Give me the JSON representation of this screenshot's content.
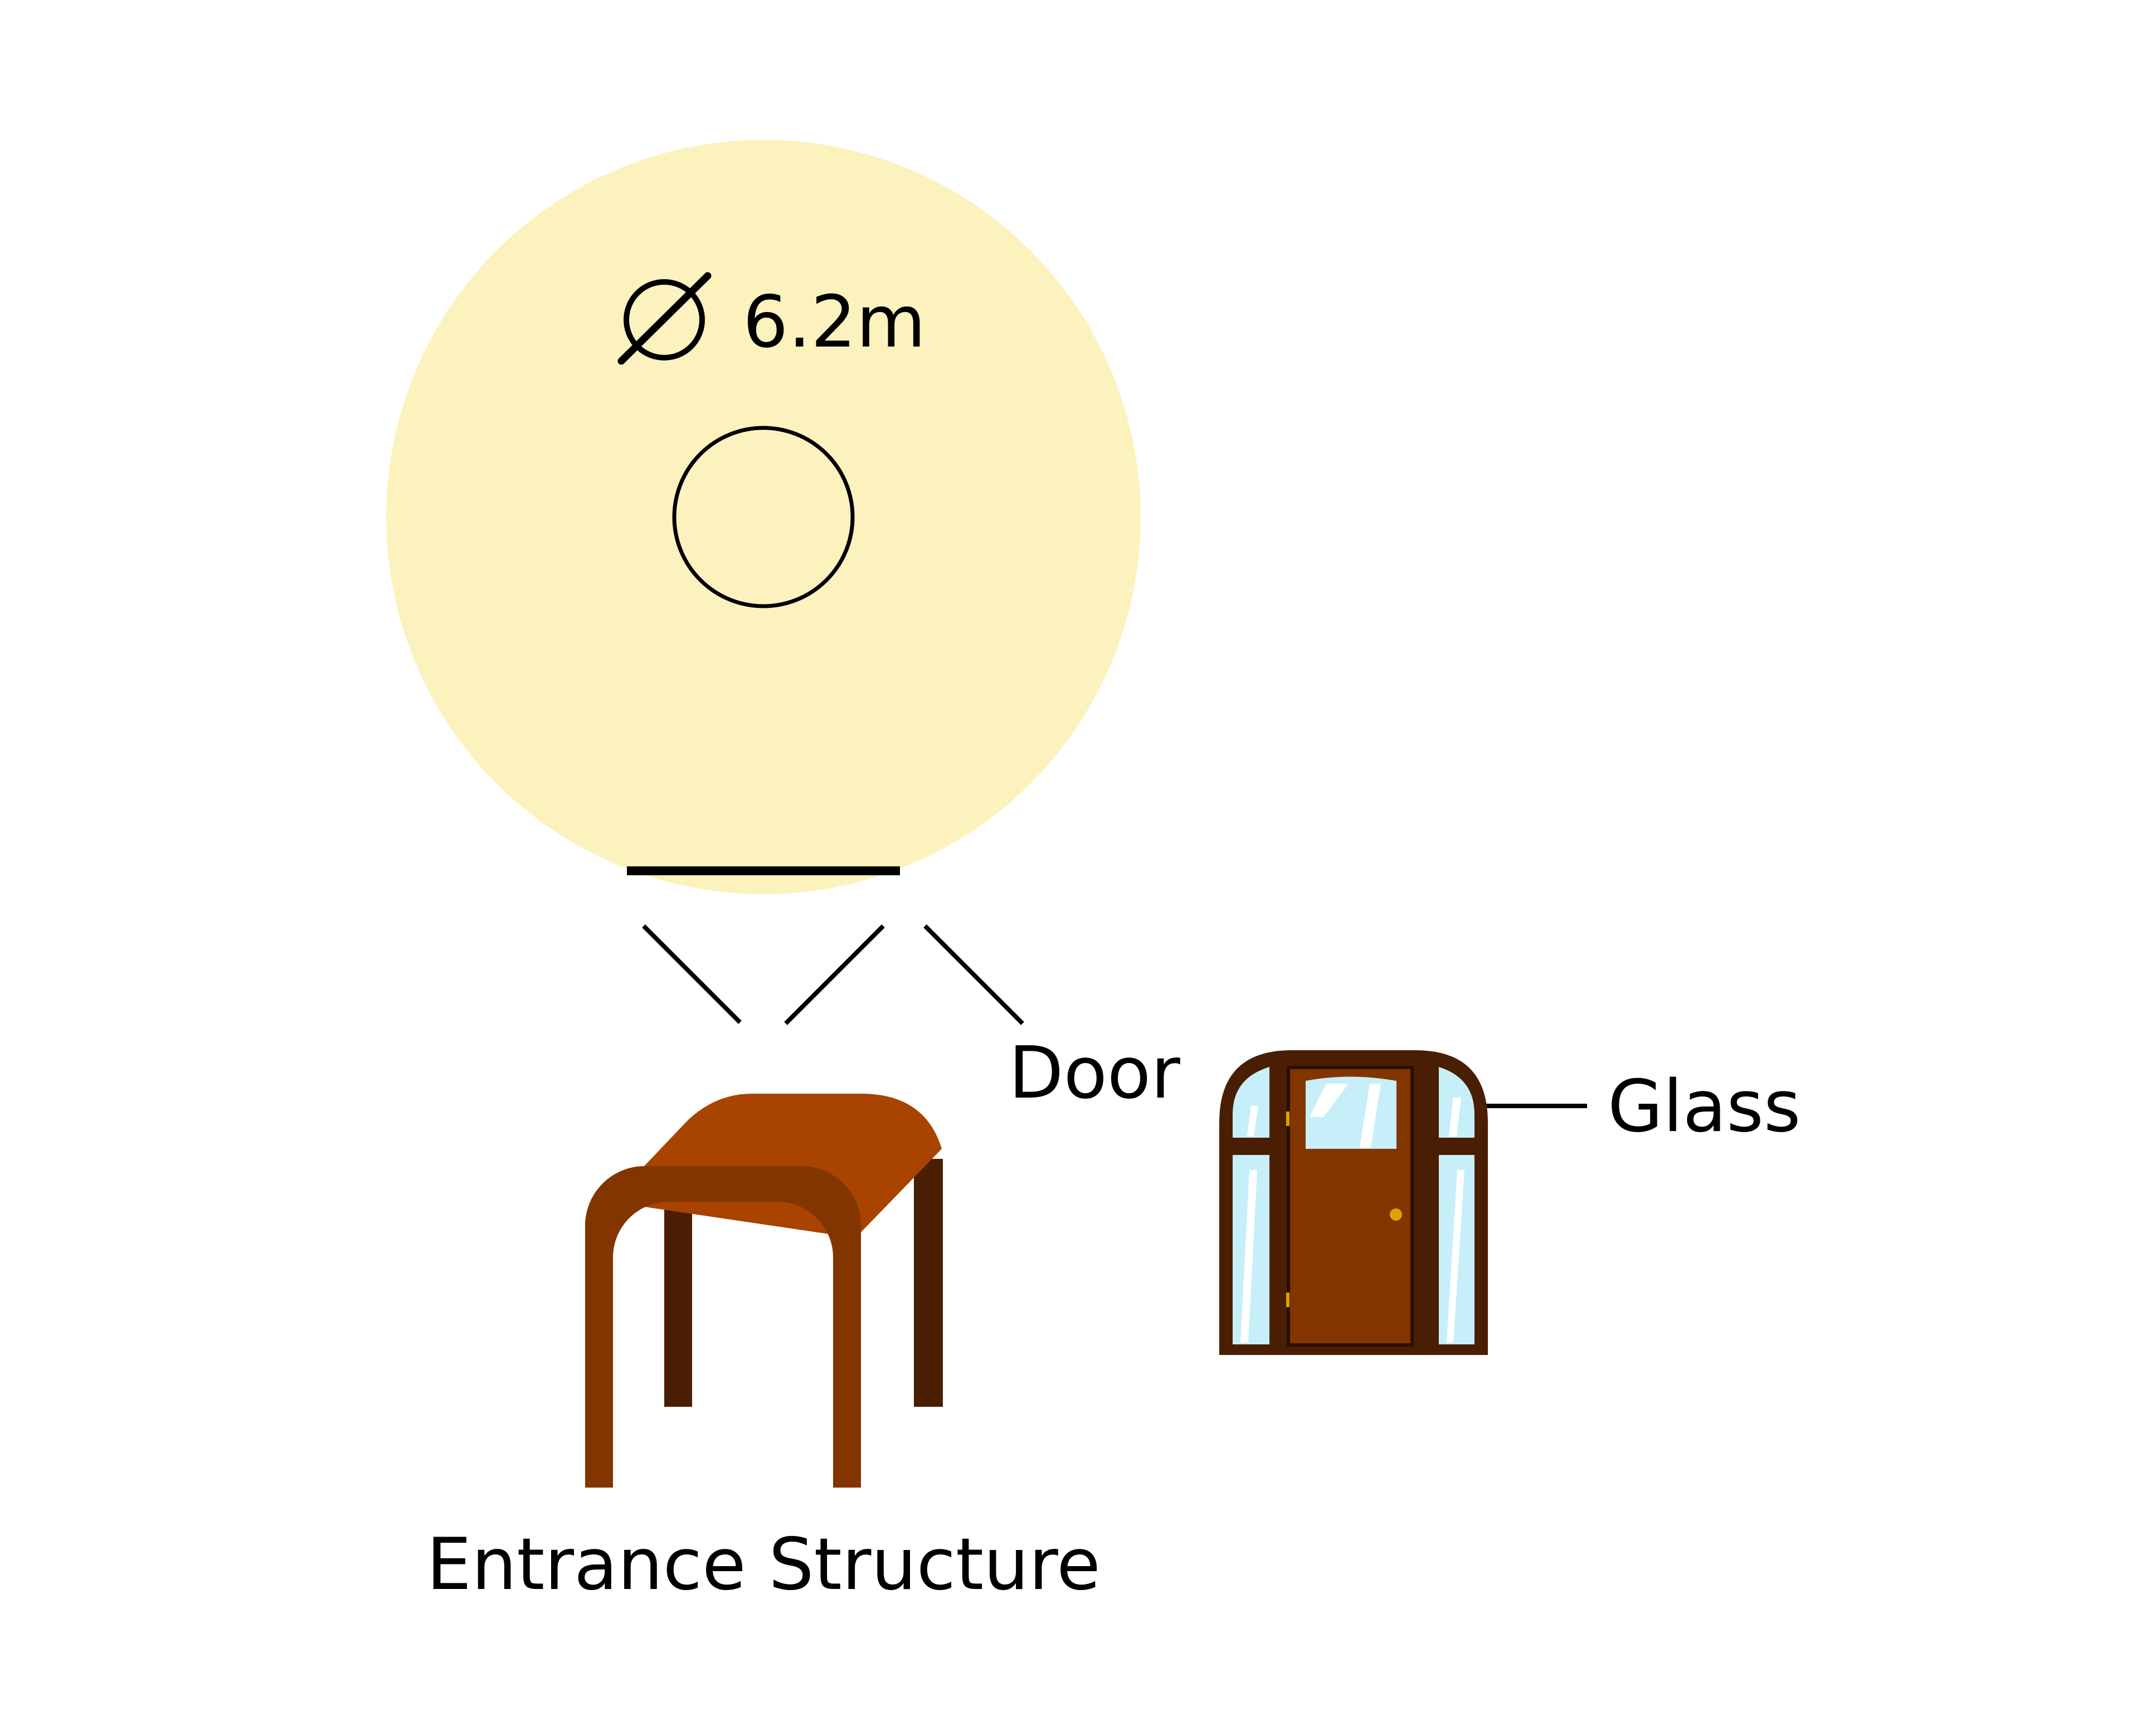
{
  "dimension": {
    "text": "6.2m",
    "symbol": "diameter-symbol"
  },
  "labels": {
    "door": "Door",
    "glass": "Glass",
    "entrance_structure": "Entrance Structure"
  },
  "icons": {
    "structure": "entrance-structure-icon",
    "door": "door-icon"
  },
  "colors": {
    "dome_fill": "#FCF2BD",
    "line": "#000000",
    "roof": "#A84300",
    "frame_front": "#833500",
    "frame_back": "#4A1E03",
    "door_body": "#833500",
    "door_frame": "#4A1E03",
    "glass": "#C6EFFA",
    "knob": "#D9A400"
  }
}
